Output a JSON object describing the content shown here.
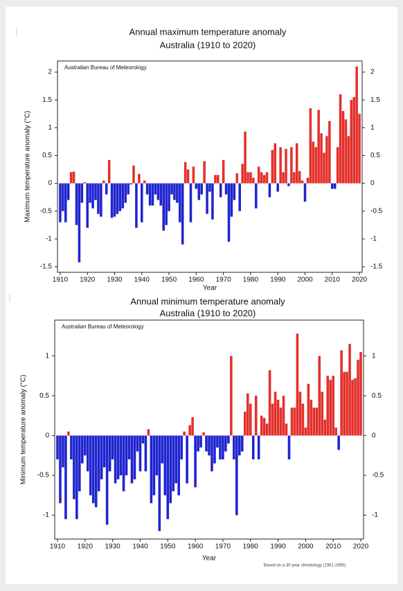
{
  "chart_data": [
    {
      "type": "bar",
      "title": [
        "Annual maximum temperature anomaly",
        "Australia (1910 to 2020)"
      ],
      "annotation": "Australian Bureau of Meteorology",
      "ylabel": "Maximum temperature anomaly (°C)",
      "xlabel": "Year",
      "positive_color": "#e3302c",
      "negative_color": "#1f24cf",
      "xlim": [
        1909,
        2021
      ],
      "xticks": [
        1910,
        1920,
        1930,
        1940,
        1950,
        1960,
        1970,
        1980,
        1990,
        2000,
        2010,
        2020
      ],
      "ylim": [
        -1.6,
        2.2
      ],
      "yticks": [
        -1.5,
        -1,
        -0.5,
        0,
        0.5,
        1,
        1.5,
        2
      ],
      "x": [
        1910,
        1911,
        1912,
        1913,
        1914,
        1915,
        1916,
        1917,
        1918,
        1919,
        1920,
        1921,
        1922,
        1923,
        1924,
        1925,
        1926,
        1927,
        1928,
        1929,
        1930,
        1931,
        1932,
        1933,
        1934,
        1935,
        1936,
        1937,
        1938,
        1939,
        1940,
        1941,
        1942,
        1943,
        1944,
        1945,
        1946,
        1947,
        1948,
        1949,
        1950,
        1951,
        1952,
        1953,
        1954,
        1955,
        1956,
        1957,
        1958,
        1959,
        1960,
        1961,
        1962,
        1963,
        1964,
        1965,
        1966,
        1967,
        1968,
        1969,
        1970,
        1971,
        1972,
        1973,
        1974,
        1975,
        1976,
        1977,
        1978,
        1979,
        1980,
        1981,
        1982,
        1983,
        1984,
        1985,
        1986,
        1987,
        1988,
        1989,
        1990,
        1991,
        1992,
        1993,
        1994,
        1995,
        1996,
        1997,
        1998,
        1999,
        2000,
        2001,
        2002,
        2003,
        2004,
        2005,
        2006,
        2007,
        2008,
        2009,
        2010,
        2011,
        2012,
        2013,
        2014,
        2015,
        2016,
        2017,
        2018,
        2019,
        2020
      ],
      "values": [
        -0.7,
        -0.5,
        -0.7,
        -0.3,
        0.2,
        0.21,
        -0.75,
        -1.42,
        -0.35,
        0.02,
        -0.8,
        -0.35,
        -0.45,
        -0.3,
        -0.55,
        -0.6,
        0.05,
        -0.2,
        0.42,
        -0.62,
        -0.6,
        -0.55,
        -0.5,
        -0.45,
        -0.35,
        -0.2,
        -0.02,
        0.32,
        -0.8,
        0.17,
        -0.7,
        0.05,
        -0.2,
        -0.4,
        -0.4,
        -0.2,
        -0.3,
        -0.4,
        -0.85,
        -0.75,
        -0.5,
        -0.2,
        -0.3,
        -0.35,
        -0.7,
        -1.1,
        0.38,
        0.25,
        -0.7,
        0.3,
        -0.1,
        -0.3,
        -0.2,
        0.4,
        -0.55,
        -0.15,
        -0.65,
        0.15,
        0.15,
        -0.25,
        0.42,
        -0.2,
        -1.05,
        -0.6,
        -0.3,
        0.18,
        -0.5,
        0.35,
        0.93,
        0.2,
        0.2,
        0.1,
        -0.45,
        0.3,
        0.2,
        0.15,
        0.2,
        -0.25,
        0.6,
        0.72,
        -0.15,
        0.65,
        0.2,
        0.62,
        -0.05,
        0.65,
        0.2,
        0.72,
        0.22,
        0.05,
        -0.33,
        0.1,
        1.35,
        0.75,
        0.65,
        1.32,
        0.9,
        0.55,
        0.85,
        1.12,
        -0.1,
        -0.1,
        0.65,
        1.6,
        1.3,
        1.15,
        0.85,
        1.5,
        1.55,
        2.1,
        1.25
      ]
    },
    {
      "type": "bar",
      "title": [
        "Annual minimum temperature anomaly",
        "Australia (1910 to 2020)"
      ],
      "annotation": "Australian Bureau of Meteorology",
      "ylabel": "Minimum temperature anomaly (°C)",
      "xlabel": "Year",
      "note": "Based on a 30-year climatology (1961-1990)",
      "positive_color": "#e3302c",
      "negative_color": "#1f24cf",
      "xlim": [
        1909,
        2021
      ],
      "xticks": [
        1910,
        1920,
        1930,
        1940,
        1950,
        1960,
        1970,
        1980,
        1990,
        2000,
        2010,
        2020
      ],
      "ylim": [
        -1.3,
        1.45
      ],
      "yticks": [
        -1,
        -0.5,
        0,
        0.5,
        1
      ],
      "x": [
        1910,
        1911,
        1912,
        1913,
        1914,
        1915,
        1916,
        1917,
        1918,
        1919,
        1920,
        1921,
        1922,
        1923,
        1924,
        1925,
        1926,
        1927,
        1928,
        1929,
        1930,
        1931,
        1932,
        1933,
        1934,
        1935,
        1936,
        1937,
        1938,
        1939,
        1940,
        1941,
        1942,
        1943,
        1944,
        1945,
        1946,
        1947,
        1948,
        1949,
        1950,
        1951,
        1952,
        1953,
        1954,
        1955,
        1956,
        1957,
        1958,
        1959,
        1960,
        1961,
        1962,
        1963,
        1964,
        1965,
        1966,
        1967,
        1968,
        1969,
        1970,
        1971,
        1972,
        1973,
        1974,
        1975,
        1976,
        1977,
        1978,
        1979,
        1980,
        1981,
        1982,
        1983,
        1984,
        1985,
        1986,
        1987,
        1988,
        1989,
        1990,
        1991,
        1992,
        1993,
        1994,
        1995,
        1996,
        1997,
        1998,
        1999,
        2000,
        2001,
        2002,
        2003,
        2004,
        2005,
        2006,
        2007,
        2008,
        2009,
        2010,
        2011,
        2012,
        2013,
        2014,
        2015,
        2016,
        2017,
        2018,
        2019,
        2020
      ],
      "values": [
        -0.3,
        -0.85,
        -0.4,
        -1.05,
        0.05,
        -0.3,
        -0.8,
        -1.05,
        -0.7,
        -0.35,
        -0.25,
        -0.45,
        -0.75,
        -0.85,
        -0.9,
        -0.7,
        -0.55,
        -0.4,
        -1.12,
        -0.45,
        -0.3,
        -0.6,
        -0.55,
        -0.5,
        -0.7,
        -0.5,
        -0.3,
        -0.6,
        -0.55,
        -0.2,
        -0.45,
        -0.1,
        -0.45,
        0.08,
        -0.85,
        -0.75,
        -0.5,
        -1.2,
        -0.35,
        -0.75,
        -1.05,
        -0.85,
        -0.7,
        -0.6,
        -0.75,
        -0.3,
        0.05,
        -0.6,
        0.13,
        0.23,
        -0.65,
        -0.2,
        -0.15,
        0.04,
        -0.2,
        -0.25,
        -0.45,
        -0.35,
        -0.15,
        -0.3,
        -0.3,
        -0.2,
        -0.1,
        1.0,
        -0.3,
        -1.0,
        -0.25,
        -0.2,
        0.3,
        0.53,
        0.4,
        -0.3,
        0.5,
        -0.3,
        0.25,
        0.22,
        0.15,
        0.82,
        0.4,
        0.55,
        0.45,
        0.35,
        0.5,
        0.15,
        -0.3,
        0.35,
        0.35,
        1.28,
        0.55,
        0.4,
        0.1,
        0.65,
        0.45,
        0.35,
        0.35,
        1.0,
        0.55,
        0.2,
        0.75,
        0.7,
        0.75,
        0.1,
        -0.18,
        1.07,
        0.8,
        0.8,
        1.15,
        0.7,
        0.72,
        0.95,
        1.05
      ]
    }
  ]
}
